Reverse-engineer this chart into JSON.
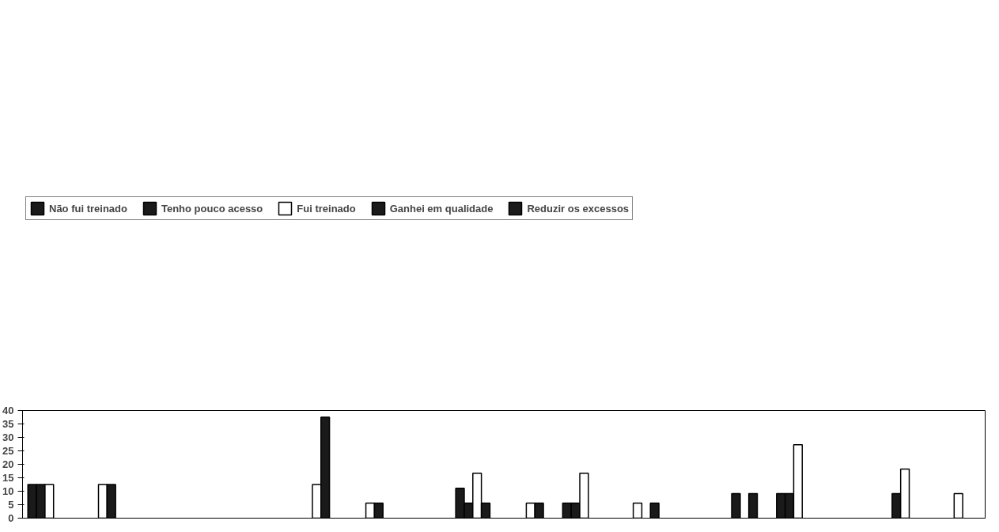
{
  "chart_data": {
    "type": "bar",
    "categories": [
      null,
      null,
      null,
      null,
      null,
      null,
      null,
      null,
      null,
      null,
      null,
      null,
      null,
      null,
      null,
      null,
      null,
      null
    ],
    "series": [
      {
        "name": "Não fui treinado",
        "color": "#1a1a1a",
        "values": [
          12.5,
          null,
          null,
          null,
          null,
          null,
          null,
          null,
          11.1,
          null,
          5.6,
          null,
          null,
          null,
          9.1,
          null,
          null,
          null
        ]
      },
      {
        "name": "Tenho pouco acesso",
        "color": "#1a1a1a",
        "values": [
          12.5,
          null,
          null,
          null,
          null,
          null,
          null,
          null,
          5.6,
          null,
          5.6,
          null,
          null,
          9.1,
          9.1,
          null,
          9.1,
          null
        ]
      },
      {
        "name": "Fui treinado",
        "color": "#ffffff",
        "values": [
          12.5,
          12.5,
          null,
          null,
          null,
          12.5,
          5.6,
          null,
          16.7,
          5.6,
          16.7,
          5.6,
          null,
          null,
          27.3,
          null,
          18.2,
          9.1
        ]
      },
      {
        "name": "Ganhei em qualidade",
        "color": "#1a1a1a",
        "values": [
          null,
          12.5,
          null,
          null,
          null,
          37.5,
          5.6,
          null,
          5.6,
          5.6,
          null,
          null,
          null,
          9.1,
          null,
          null,
          null,
          null
        ]
      },
      {
        "name": "Reduzir os excessos",
        "color": "#1a1a1a",
        "values": [
          null,
          null,
          null,
          null,
          null,
          null,
          null,
          null,
          null,
          null,
          null,
          5.6,
          null,
          null,
          null,
          null,
          null,
          null
        ]
      }
    ],
    "ylim": [
      0,
      40
    ],
    "yticks": [
      0,
      5,
      10,
      15,
      20,
      25,
      30,
      35,
      40
    ],
    "grid": false,
    "legend": "top"
  }
}
